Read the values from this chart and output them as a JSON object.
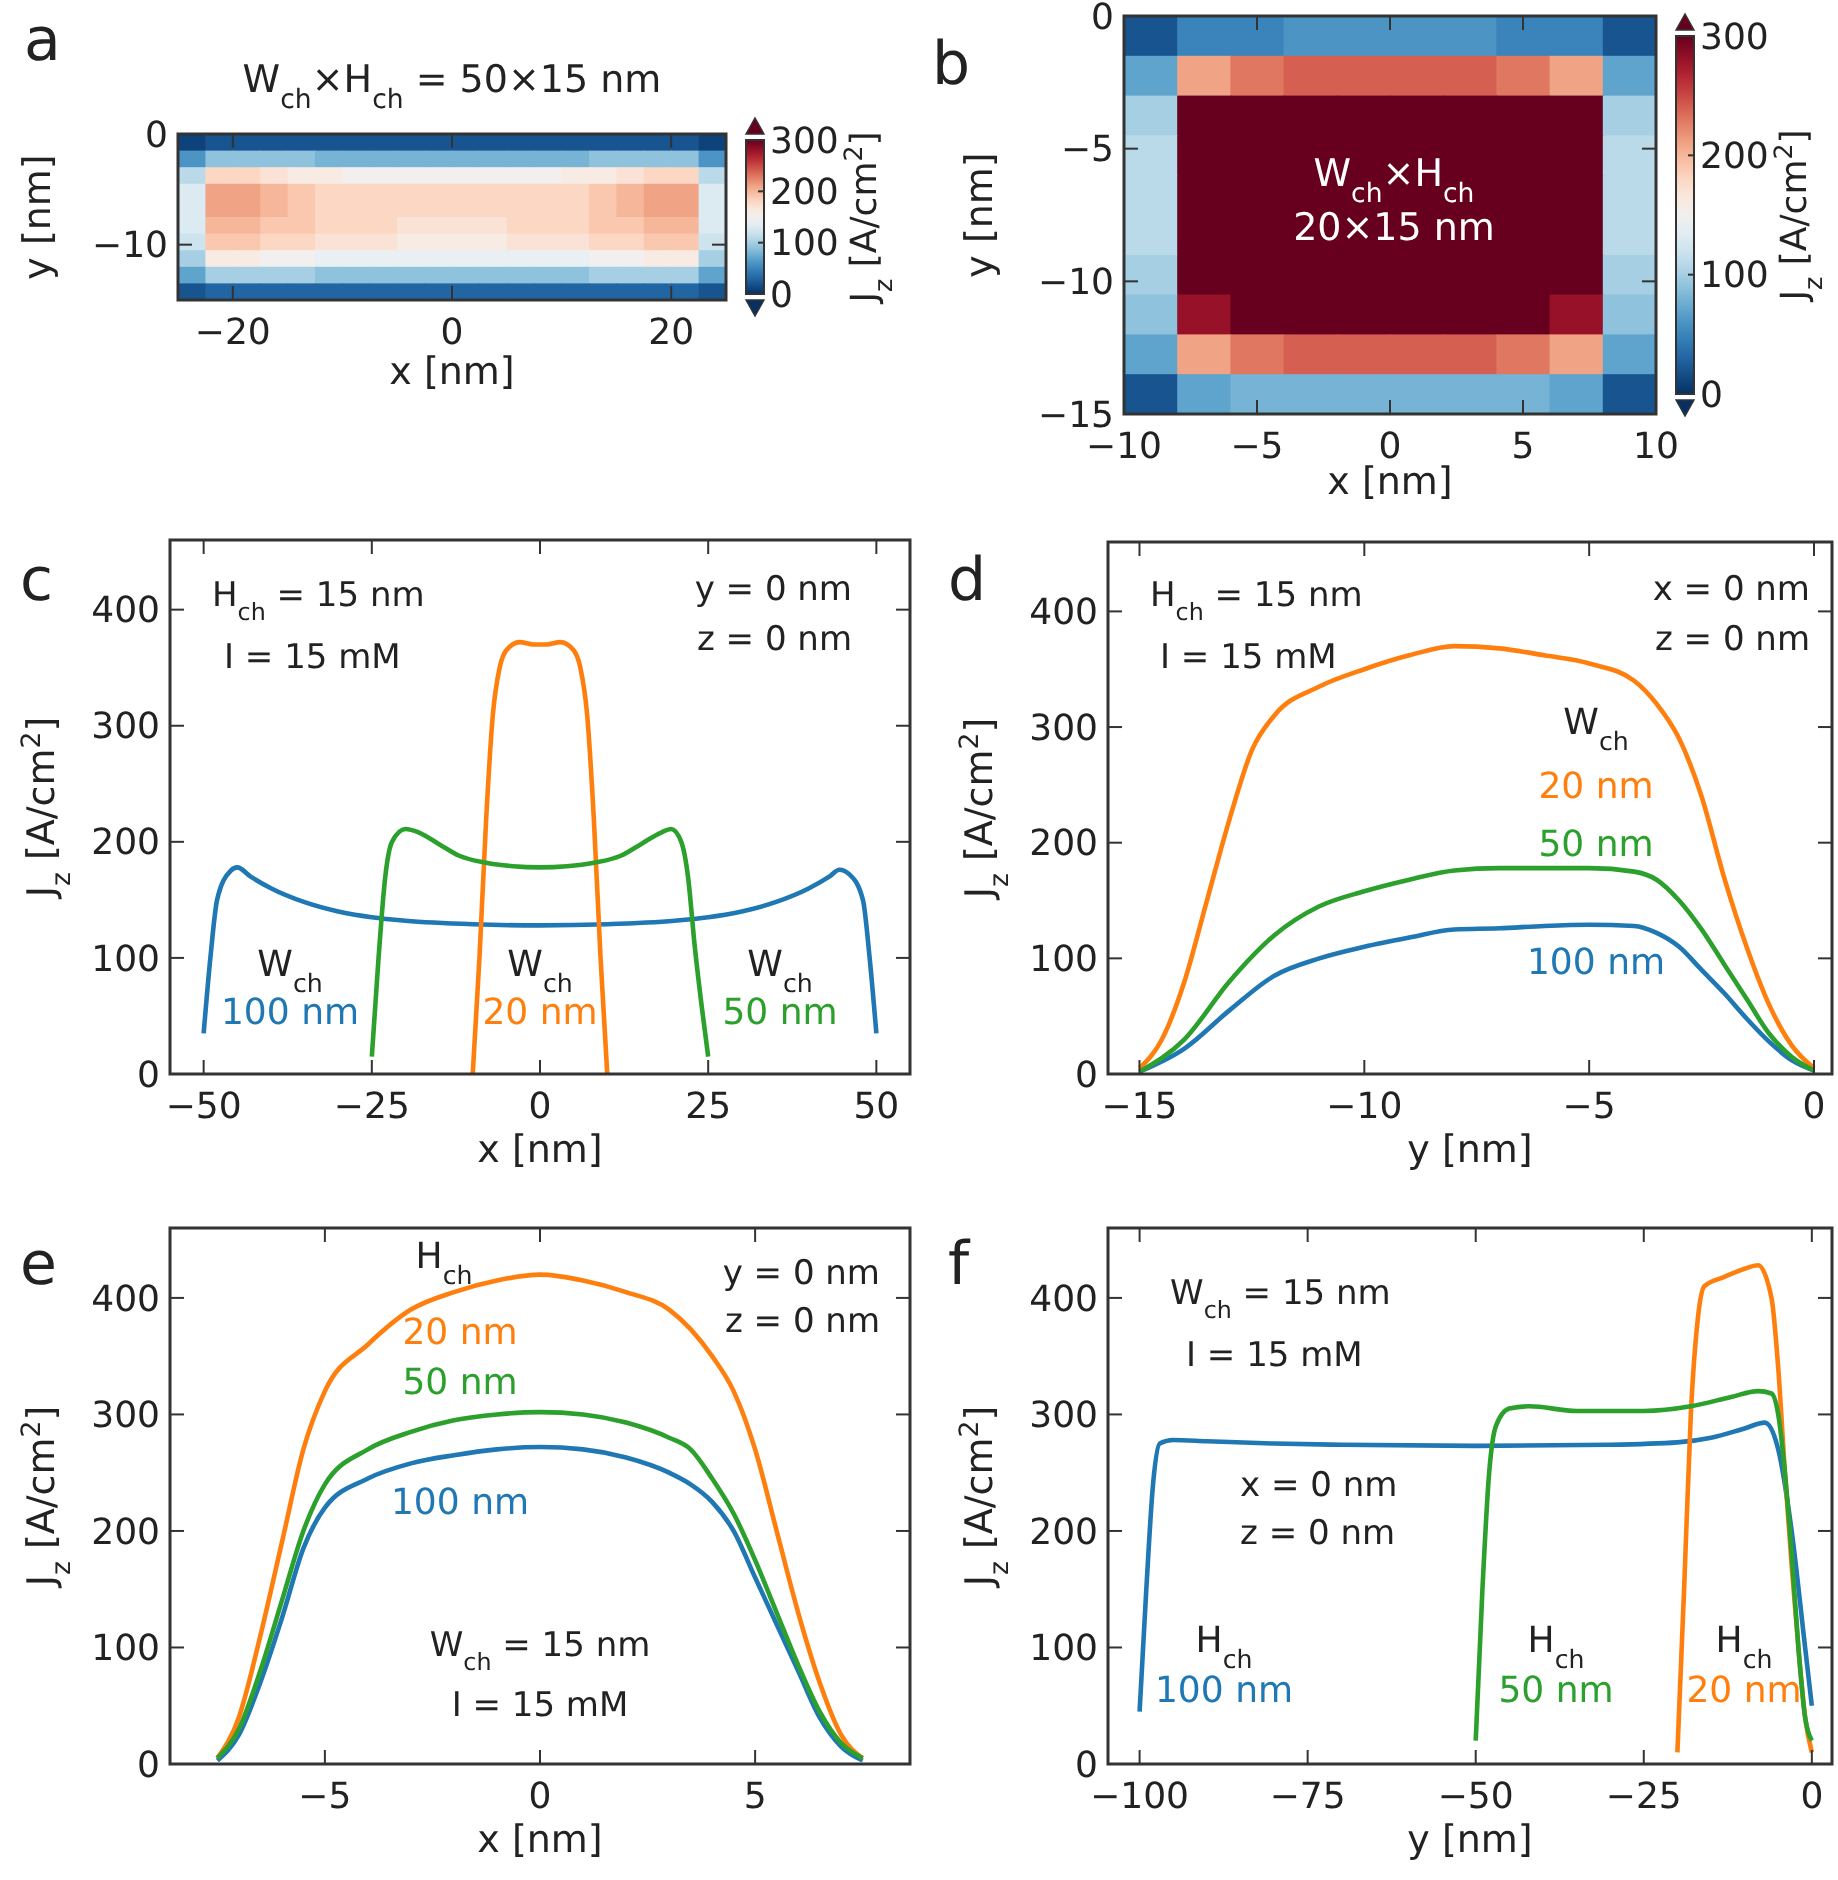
{
  "chart_data": [
    {
      "type": "heatmap",
      "title": "W$_{ch}$×H$_{ch}$ = 50×15 nm",
      "xlabel": "x [nm]",
      "ylabel": "y [nm]",
      "clabel": "J$_{z}$ [A/cm$^{2}$]",
      "x": [
        -23.75,
        -21.25,
        -18.75,
        -16.25,
        -13.75,
        -11.25,
        -8.75,
        -6.25,
        -3.75,
        -1.25,
        1.25,
        3.75,
        6.25,
        8.75,
        11.25,
        13.75,
        16.25,
        18.75,
        21.25,
        23.75
      ],
      "y": [
        -0.75,
        -2.25,
        -3.75,
        -5.25,
        -6.75,
        -8.25,
        -9.75,
        -11.25,
        -12.75,
        -14.25
      ],
      "cells": [
        [
          10,
          20,
          20,
          20,
          20,
          20,
          20,
          20,
          20,
          20,
          20,
          20,
          20,
          20,
          20,
          20,
          20,
          20,
          20,
          10
        ],
        [
          60,
          90,
          90,
          90,
          90,
          80,
          80,
          80,
          80,
          80,
          80,
          80,
          80,
          80,
          80,
          90,
          90,
          90,
          90,
          60
        ],
        [
          110,
          180,
          180,
          170,
          160,
          160,
          150,
          150,
          150,
          150,
          150,
          150,
          150,
          150,
          160,
          160,
          170,
          180,
          180,
          110
        ],
        [
          130,
          210,
          210,
          200,
          190,
          180,
          180,
          180,
          180,
          180,
          180,
          180,
          180,
          180,
          180,
          190,
          200,
          210,
          210,
          130
        ],
        [
          130,
          210,
          210,
          200,
          190,
          180,
          180,
          180,
          180,
          180,
          180,
          180,
          180,
          180,
          180,
          190,
          200,
          210,
          210,
          130
        ],
        [
          130,
          200,
          200,
          190,
          190,
          180,
          180,
          180,
          170,
          170,
          170,
          170,
          180,
          180,
          180,
          190,
          190,
          200,
          200,
          130
        ],
        [
          120,
          190,
          190,
          180,
          180,
          170,
          170,
          170,
          160,
          160,
          160,
          160,
          170,
          170,
          170,
          180,
          180,
          190,
          190,
          120
        ],
        [
          100,
          160,
          160,
          150,
          150,
          140,
          140,
          140,
          140,
          140,
          140,
          140,
          140,
          140,
          140,
          150,
          150,
          160,
          160,
          100
        ],
        [
          70,
          100,
          100,
          100,
          100,
          90,
          90,
          90,
          90,
          90,
          90,
          90,
          90,
          90,
          90,
          100,
          100,
          100,
          100,
          70
        ],
        [
          20,
          30,
          30,
          30,
          30,
          30,
          30,
          30,
          30,
          30,
          30,
          30,
          30,
          30,
          30,
          30,
          30,
          30,
          30,
          20
        ]
      ],
      "clim": [
        0,
        300
      ],
      "cticks": [
        0,
        100,
        200,
        300
      ],
      "xlim": [
        -25,
        25
      ],
      "xticks": [
        {
          "value": -20,
          "label": "−20"
        },
        0,
        20
      ],
      "ylim": [
        -15,
        0
      ],
      "yticks": [
        {
          "value": -10,
          "label": "−10"
        },
        0
      ],
      "annotations": [
        "a"
      ]
    },
    {
      "type": "heatmap",
      "xlabel": "x [nm]",
      "ylabel": "y [nm]",
      "clabel": "J$_{z}$ [A/cm$^{2}$]",
      "x": [
        -9,
        -7,
        -5,
        -3,
        -1,
        1,
        3,
        5,
        7,
        9
      ],
      "y": [
        -0.75,
        -2.25,
        -3.75,
        -5.25,
        -6.75,
        -8.25,
        -9.75,
        -11.25,
        -12.75,
        -14.25
      ],
      "cells": [
        [
          20,
          50,
          50,
          60,
          60,
          60,
          60,
          50,
          50,
          20
        ],
        [
          70,
          210,
          230,
          240,
          240,
          240,
          240,
          230,
          210,
          70
        ],
        [
          100,
          300,
          330,
          340,
          340,
          340,
          340,
          330,
          300,
          100
        ],
        [
          110,
          320,
          350,
          360,
          360,
          360,
          360,
          350,
          320,
          110
        ],
        [
          110,
          330,
          360,
          370,
          370,
          370,
          370,
          360,
          330,
          110
        ],
        [
          110,
          330,
          360,
          370,
          370,
          370,
          370,
          360,
          330,
          110
        ],
        [
          100,
          310,
          340,
          350,
          350,
          350,
          350,
          340,
          310,
          100
        ],
        [
          90,
          280,
          310,
          320,
          320,
          320,
          320,
          310,
          280,
          90
        ],
        [
          70,
          210,
          230,
          240,
          240,
          240,
          240,
          230,
          210,
          70
        ],
        [
          20,
          70,
          80,
          80,
          80,
          80,
          80,
          80,
          70,
          20
        ]
      ],
      "clim": [
        0,
        300
      ],
      "cticks": [
        0,
        100,
        200,
        300
      ],
      "xlim": [
        -10,
        10
      ],
      "xticks": [
        {
          "value": -10,
          "label": "−10"
        },
        {
          "value": -5,
          "label": "−5"
        },
        0,
        5,
        10
      ],
      "ylim": [
        -15,
        0
      ],
      "yticks": [
        {
          "value": -15,
          "label": "−15"
        },
        {
          "value": -10,
          "label": "−10"
        },
        {
          "value": -5,
          "label": "−5"
        },
        0
      ],
      "annotations": [
        "b",
        "W$_{ch}$×H$_{ch}$",
        "20×15 nm"
      ]
    },
    {
      "type": "line",
      "xlabel": "x [nm]",
      "ylabel": "J$_{z}$ [A/cm$^{2}$]",
      "legend_title": "W$_{ch}$",
      "xlim": [
        -55,
        55
      ],
      "xticks": [
        {
          "value": -50,
          "label": "−50"
        },
        {
          "value": -25,
          "label": "−25"
        },
        0,
        25,
        50
      ],
      "ylim": [
        0,
        460
      ],
      "yticks": [
        0,
        100,
        200,
        300,
        400
      ],
      "series": [
        {
          "name": "100 nm",
          "color": "#1f77b4",
          "x": [
            -50,
            -49,
            -48,
            -46,
            -45,
            -43,
            -40,
            -35,
            -30,
            -25,
            -20,
            -10,
            0,
            10,
            20,
            25,
            30,
            35,
            40,
            43,
            44.5,
            46,
            48,
            49,
            50
          ],
          "values": [
            35,
            100,
            150,
            175,
            178,
            170,
            160,
            148,
            140,
            135,
            132,
            129,
            128,
            129,
            132,
            135,
            140,
            148,
            160,
            170,
            176,
            172,
            150,
            100,
            35
          ]
        },
        {
          "name": "20 nm",
          "color": "#ff7f0e",
          "x": [
            -10,
            -9,
            -8,
            -7,
            -6,
            -5,
            -3,
            -1,
            1,
            3,
            5,
            6,
            7,
            8,
            9,
            10
          ],
          "values": [
            0,
            100,
            220,
            310,
            350,
            365,
            372,
            370,
            370,
            372,
            365,
            350,
            310,
            220,
            100,
            0
          ]
        },
        {
          "name": "50 nm",
          "color": "#2ca02c",
          "x": [
            -25,
            -24,
            -23,
            -22,
            -20,
            -18,
            -15,
            -12,
            -8,
            -4,
            0,
            4,
            8,
            12,
            15,
            18,
            19.5,
            21,
            22,
            23,
            24,
            25
          ],
          "values": [
            15,
            100,
            170,
            200,
            211,
            208,
            198,
            188,
            182,
            179,
            178,
            179,
            182,
            188,
            198,
            208,
            211,
            200,
            170,
            110,
            60,
            15
          ]
        }
      ],
      "annotations": [
        "c",
        "H$_{ch}$ = 15 nm",
        "I = 15 mM",
        "y = 0 nm",
        "z = 0 nm"
      ]
    },
    {
      "type": "line",
      "xlabel": "y [nm]",
      "ylabel": "J$_{z}$ [A/cm$^{2}$]",
      "legend_title": "W$_{ch}$",
      "xlim": [
        -15.7,
        0.4
      ],
      "xticks": [
        {
          "value": -15,
          "label": "−15"
        },
        {
          "value": -10,
          "label": "−10"
        },
        {
          "value": -5,
          "label": "−5"
        },
        0
      ],
      "ylim": [
        0,
        460
      ],
      "yticks": [
        0,
        100,
        200,
        300,
        400
      ],
      "series": [
        {
          "name": "100 nm",
          "color": "#1f77b4",
          "x": [
            -15,
            -14,
            -13,
            -12,
            -11,
            -10,
            -9,
            -8,
            -7,
            -6,
            -5,
            -4,
            -3.5,
            -3,
            -2.5,
            -2,
            -1.5,
            -1,
            -0.5,
            0
          ],
          "values": [
            2,
            22,
            55,
            85,
            100,
            110,
            118,
            125,
            126,
            128,
            129,
            128,
            122,
            110,
            90,
            70,
            48,
            28,
            12,
            3
          ]
        },
        {
          "name": "20 nm",
          "color": "#ff7f0e",
          "x": [
            -15,
            -14.5,
            -14,
            -13.5,
            -13,
            -12.5,
            -12,
            -11,
            -10,
            -9,
            -8,
            -7,
            -6,
            -5,
            -4,
            -3.5,
            -3,
            -2.5,
            -2,
            -1.5,
            -1,
            -0.5,
            0
          ],
          "values": [
            5,
            30,
            80,
            150,
            220,
            280,
            310,
            335,
            350,
            362,
            370,
            368,
            362,
            355,
            340,
            320,
            290,
            240,
            170,
            110,
            60,
            25,
            5
          ]
        },
        {
          "name": "50 nm",
          "color": "#2ca02c",
          "x": [
            -15,
            -14,
            -13,
            -12,
            -11,
            -10,
            -9,
            -8,
            -7,
            -6,
            -5,
            -4,
            -3.5,
            -3,
            -2.5,
            -2,
            -1.5,
            -1,
            -0.5,
            0
          ],
          "values": [
            2,
            30,
            80,
            120,
            145,
            158,
            168,
            176,
            178,
            178,
            178,
            175,
            168,
            150,
            125,
            95,
            65,
            35,
            15,
            3
          ]
        }
      ],
      "annotations": [
        "d",
        "H$_{ch}$ = 15 nm",
        "I = 15 mM",
        "x = 0 nm",
        "z = 0 nm"
      ]
    },
    {
      "type": "line",
      "xlabel": "x [nm]",
      "ylabel": "J$_{z}$ [A/cm$^{2}$]",
      "legend_title": "H$_{ch}$",
      "xlim": [
        -8.6,
        8.6
      ],
      "xticks": [
        {
          "value": -5,
          "label": "−5"
        },
        0,
        5
      ],
      "ylim": [
        0,
        460
      ],
      "yticks": [
        0,
        100,
        200,
        300,
        400
      ],
      "series": [
        {
          "name": "100 nm",
          "color": "#1f77b4",
          "x": [
            -7.5,
            -7,
            -6.5,
            -6,
            -5.5,
            -5,
            -4,
            -3,
            -2,
            -1,
            0,
            1,
            2,
            3,
            3.5,
            4,
            4.5,
            5,
            5.5,
            6,
            6.5,
            7,
            7.5
          ],
          "values": [
            3,
            25,
            70,
            125,
            185,
            220,
            245,
            258,
            265,
            270,
            272,
            270,
            263,
            250,
            240,
            225,
            200,
            160,
            120,
            80,
            40,
            15,
            3
          ]
        },
        {
          "name": "20 nm",
          "color": "#ff7f0e",
          "x": [
            -7.5,
            -7,
            -6.5,
            -6,
            -5.5,
            -5,
            -4,
            -3,
            -2,
            -1,
            0,
            1,
            2,
            3,
            4,
            4.5,
            5,
            5.5,
            6,
            6.5,
            7,
            7.5
          ],
          "values": [
            5,
            40,
            110,
            190,
            270,
            320,
            360,
            390,
            405,
            415,
            420,
            415,
            405,
            390,
            350,
            320,
            270,
            200,
            130,
            70,
            25,
            5
          ]
        },
        {
          "name": "50 nm",
          "color": "#2ca02c",
          "x": [
            -7.5,
            -7,
            -6.5,
            -6,
            -5.5,
            -5,
            -4,
            -3,
            -2,
            -1,
            0,
            1,
            2,
            3,
            3.5,
            4,
            4.5,
            5,
            5.5,
            6,
            6.5,
            7,
            7.5
          ],
          "values": [
            5,
            30,
            80,
            140,
            200,
            240,
            270,
            285,
            295,
            300,
            302,
            300,
            293,
            280,
            270,
            245,
            215,
            175,
            130,
            85,
            45,
            18,
            5
          ]
        }
      ],
      "annotations": [
        "e",
        "y = 0 nm",
        "z = 0 nm",
        "W$_{ch}$ = 15 nm",
        "I = 15 mM"
      ]
    },
    {
      "type": "line",
      "xlabel": "y [nm]",
      "ylabel": "J$_{z}$ [A/cm$^{2}$]",
      "legend_title": "H$_{ch}$",
      "xlim": [
        -104.7,
        3
      ],
      "xticks": [
        {
          "value": -100,
          "label": "−100"
        },
        {
          "value": -75,
          "label": "−75"
        },
        {
          "value": -50,
          "label": "−50"
        },
        {
          "value": -25,
          "label": "−25"
        },
        0
      ],
      "ylim": [
        0,
        460
      ],
      "yticks": [
        0,
        100,
        200,
        300,
        400
      ],
      "series": [
        {
          "name": "100 nm",
          "color": "#1f77b4",
          "x": [
            -100,
            -99,
            -98,
            -97,
            -95,
            -90,
            -80,
            -70,
            -50,
            -30,
            -20,
            -15,
            -10,
            -7,
            -5,
            -3,
            -1,
            0
          ],
          "values": [
            45,
            150,
            240,
            275,
            278,
            277,
            275,
            274,
            273,
            274,
            276,
            280,
            288,
            293,
            270,
            200,
            100,
            50
          ]
        },
        {
          "name": "20 nm",
          "color": "#ff7f0e",
          "x": [
            -20,
            -19,
            -18,
            -17,
            -16,
            -13,
            -10,
            -8,
            -6,
            -5,
            -4,
            -3,
            -2,
            -1,
            0
          ],
          "values": [
            10,
            150,
            300,
            380,
            410,
            418,
            425,
            428,
            400,
            340,
            250,
            170,
            100,
            40,
            10
          ]
        },
        {
          "name": "50 nm",
          "color": "#2ca02c",
          "x": [
            -50,
            -49,
            -48,
            -47,
            -45,
            -42,
            -35,
            -25,
            -18,
            -12,
            -8,
            -6,
            -5,
            -4,
            -3,
            -2,
            -1,
            0
          ],
          "values": [
            20,
            150,
            250,
            290,
            305,
            307,
            303,
            303,
            307,
            315,
            320,
            318,
            300,
            250,
            180,
            100,
            40,
            20
          ]
        }
      ],
      "annotations": [
        "f",
        "W$_{ch}$ = 15 nm",
        "I = 15 mM",
        "x = 0 nm",
        "z = 0 nm"
      ]
    }
  ]
}
